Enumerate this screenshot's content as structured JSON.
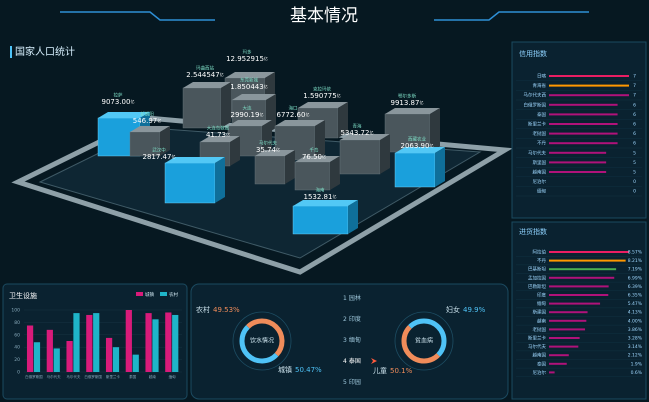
{
  "header": {
    "title": "基本情况"
  },
  "population": {
    "title": "国家人口统计",
    "blocks": [
      {
        "name": "拉萨",
        "value": "9073.00",
        "unit": "亿"
      },
      {
        "name": "新朝阳",
        "value": "546.97",
        "unit": "亿"
      },
      {
        "name": "玛多",
        "value": "12.952915",
        "unit": "亿"
      },
      {
        "name": "玛曲西站",
        "value": "2.544547",
        "unit": "亿"
      },
      {
        "name": "东莞新城",
        "value": "1.850443",
        "unit": "亿"
      },
      {
        "name": "克拉玛依",
        "value": "1.590775",
        "unit": "亿"
      },
      {
        "name": "鄂尔多斯",
        "value": "9913.87",
        "unit": "亿"
      },
      {
        "name": "大连",
        "value": "2990.19",
        "unit": "亿"
      },
      {
        "name": "海口",
        "value": "6772.60",
        "unit": "亿"
      },
      {
        "name": "大连岛数据",
        "value": "41.73",
        "unit": "亿"
      },
      {
        "name": "武汉中",
        "value": "2817.47",
        "unit": "亿"
      },
      {
        "name": "马尔代夫",
        "value": "35.74",
        "unit": "亿"
      },
      {
        "name": "千岛",
        "value": "76.50",
        "unit": "亿"
      },
      {
        "name": "青海",
        "value": "5343.72",
        "unit": "亿"
      },
      {
        "name": "西藏农业",
        "value": "2063.90",
        "unit": "亿"
      },
      {
        "name": "海南",
        "value": "1532.81",
        "unit": "亿"
      }
    ]
  },
  "credit": {
    "type": "bar",
    "title": "信用指数",
    "categories": [
      "日喀",
      "青海省",
      "马尔代夫西",
      "白俄罗斯国",
      "泰国",
      "斯里兰卡",
      "老挝国",
      "不丹",
      "马尔代夫",
      "斯里国",
      "越南国",
      "尼泊尔",
      "缅甸"
    ],
    "values": [
      7,
      7,
      7,
      6,
      6,
      6,
      6,
      6,
      5,
      5,
      5,
      0,
      0
    ],
    "colors": [
      "#e91e63",
      "#ff9800",
      "#b0127a",
      "#b0127a",
      "#b0127a",
      "#b0127a",
      "#b0127a",
      "#b0127a",
      "#b0127a",
      "#b0127a",
      "#b0127a",
      "#b0127a",
      "#b0127a"
    ]
  },
  "goods": {
    "type": "bar",
    "title": "进货指数",
    "categories": [
      "阿拉伯",
      "不丹",
      "巴基斯坦",
      "孟加拉国",
      "巴勒斯坦",
      "印度",
      "缅甸",
      "斯建国",
      "越南",
      "老挝国",
      "斯里兰卡",
      "马尔代夫",
      "越南国",
      "泰国",
      "尼泊尔"
    ],
    "values": [
      8.57,
      8.21,
      7.19,
      6.99,
      6.39,
      6.35,
      5.47,
      4.13,
      4.0,
      3.86,
      3.28,
      3.14,
      2.12,
      1.9,
      0.6
    ],
    "value_labels": [
      "8.57%",
      "8.21%",
      "7.19%",
      "6.99%",
      "6.39%",
      "6.35%",
      "5.47%",
      "4.13%",
      "4.00%",
      "3.86%",
      "3.28%",
      "3.14%",
      "2.12%",
      "1.9%",
      "0.6%"
    ],
    "colors": [
      "#e91e63",
      "#ff9800",
      "#4caf50",
      "#b0127a",
      "#b0127a",
      "#b0127a",
      "#b0127a",
      "#b0127a",
      "#b0127a",
      "#b0127a",
      "#b0127a",
      "#b0127a",
      "#b0127a",
      "#b0127a",
      "#b0127a"
    ]
  },
  "sanitation": {
    "type": "bar",
    "title": "卫生设施",
    "categories": [
      "白俄罗斯国",
      "马尔代夫",
      "马尔代夫",
      "白俄罗斯国",
      "斯里兰卡",
      "泰国",
      "越南",
      "缅甸"
    ],
    "series": [
      {
        "name": "城镇",
        "color": "#d81b7a",
        "values": [
          75,
          68,
          50,
          92,
          55,
          100,
          95,
          96
        ]
      },
      {
        "name": "农村",
        "color": "#1fb5c9",
        "values": [
          48,
          38,
          95,
          95,
          40,
          28,
          85,
          92
        ]
      }
    ],
    "ylim": [
      0,
      100
    ],
    "yticks": [
      0,
      20,
      40,
      60,
      80,
      100
    ]
  },
  "water": {
    "type": "pie",
    "title": "饮水情况",
    "slices": [
      {
        "name": "农村",
        "value": 49.53,
        "label": "49.53%",
        "color": "#f08c5a"
      },
      {
        "name": "城镇",
        "value": 50.47,
        "label": "50.47%",
        "color": "#4fc3f7"
      }
    ]
  },
  "anemia": {
    "type": "pie",
    "title": "贫血病",
    "slices": [
      {
        "name": "妇女",
        "value": 49.9,
        "label": "49.9%",
        "color": "#4fc3f7"
      },
      {
        "name": "儿童",
        "value": 50.1,
        "label": "50.1%",
        "color": "#f08c5a"
      }
    ]
  },
  "ranking": {
    "selected": 3,
    "items": [
      {
        "rank": 1,
        "name": "园林"
      },
      {
        "rank": 2,
        "name": "印度"
      },
      {
        "rank": 3,
        "name": "缅甸"
      },
      {
        "rank": 4,
        "name": "泰国"
      },
      {
        "rank": 5,
        "name": "印园"
      }
    ]
  }
}
